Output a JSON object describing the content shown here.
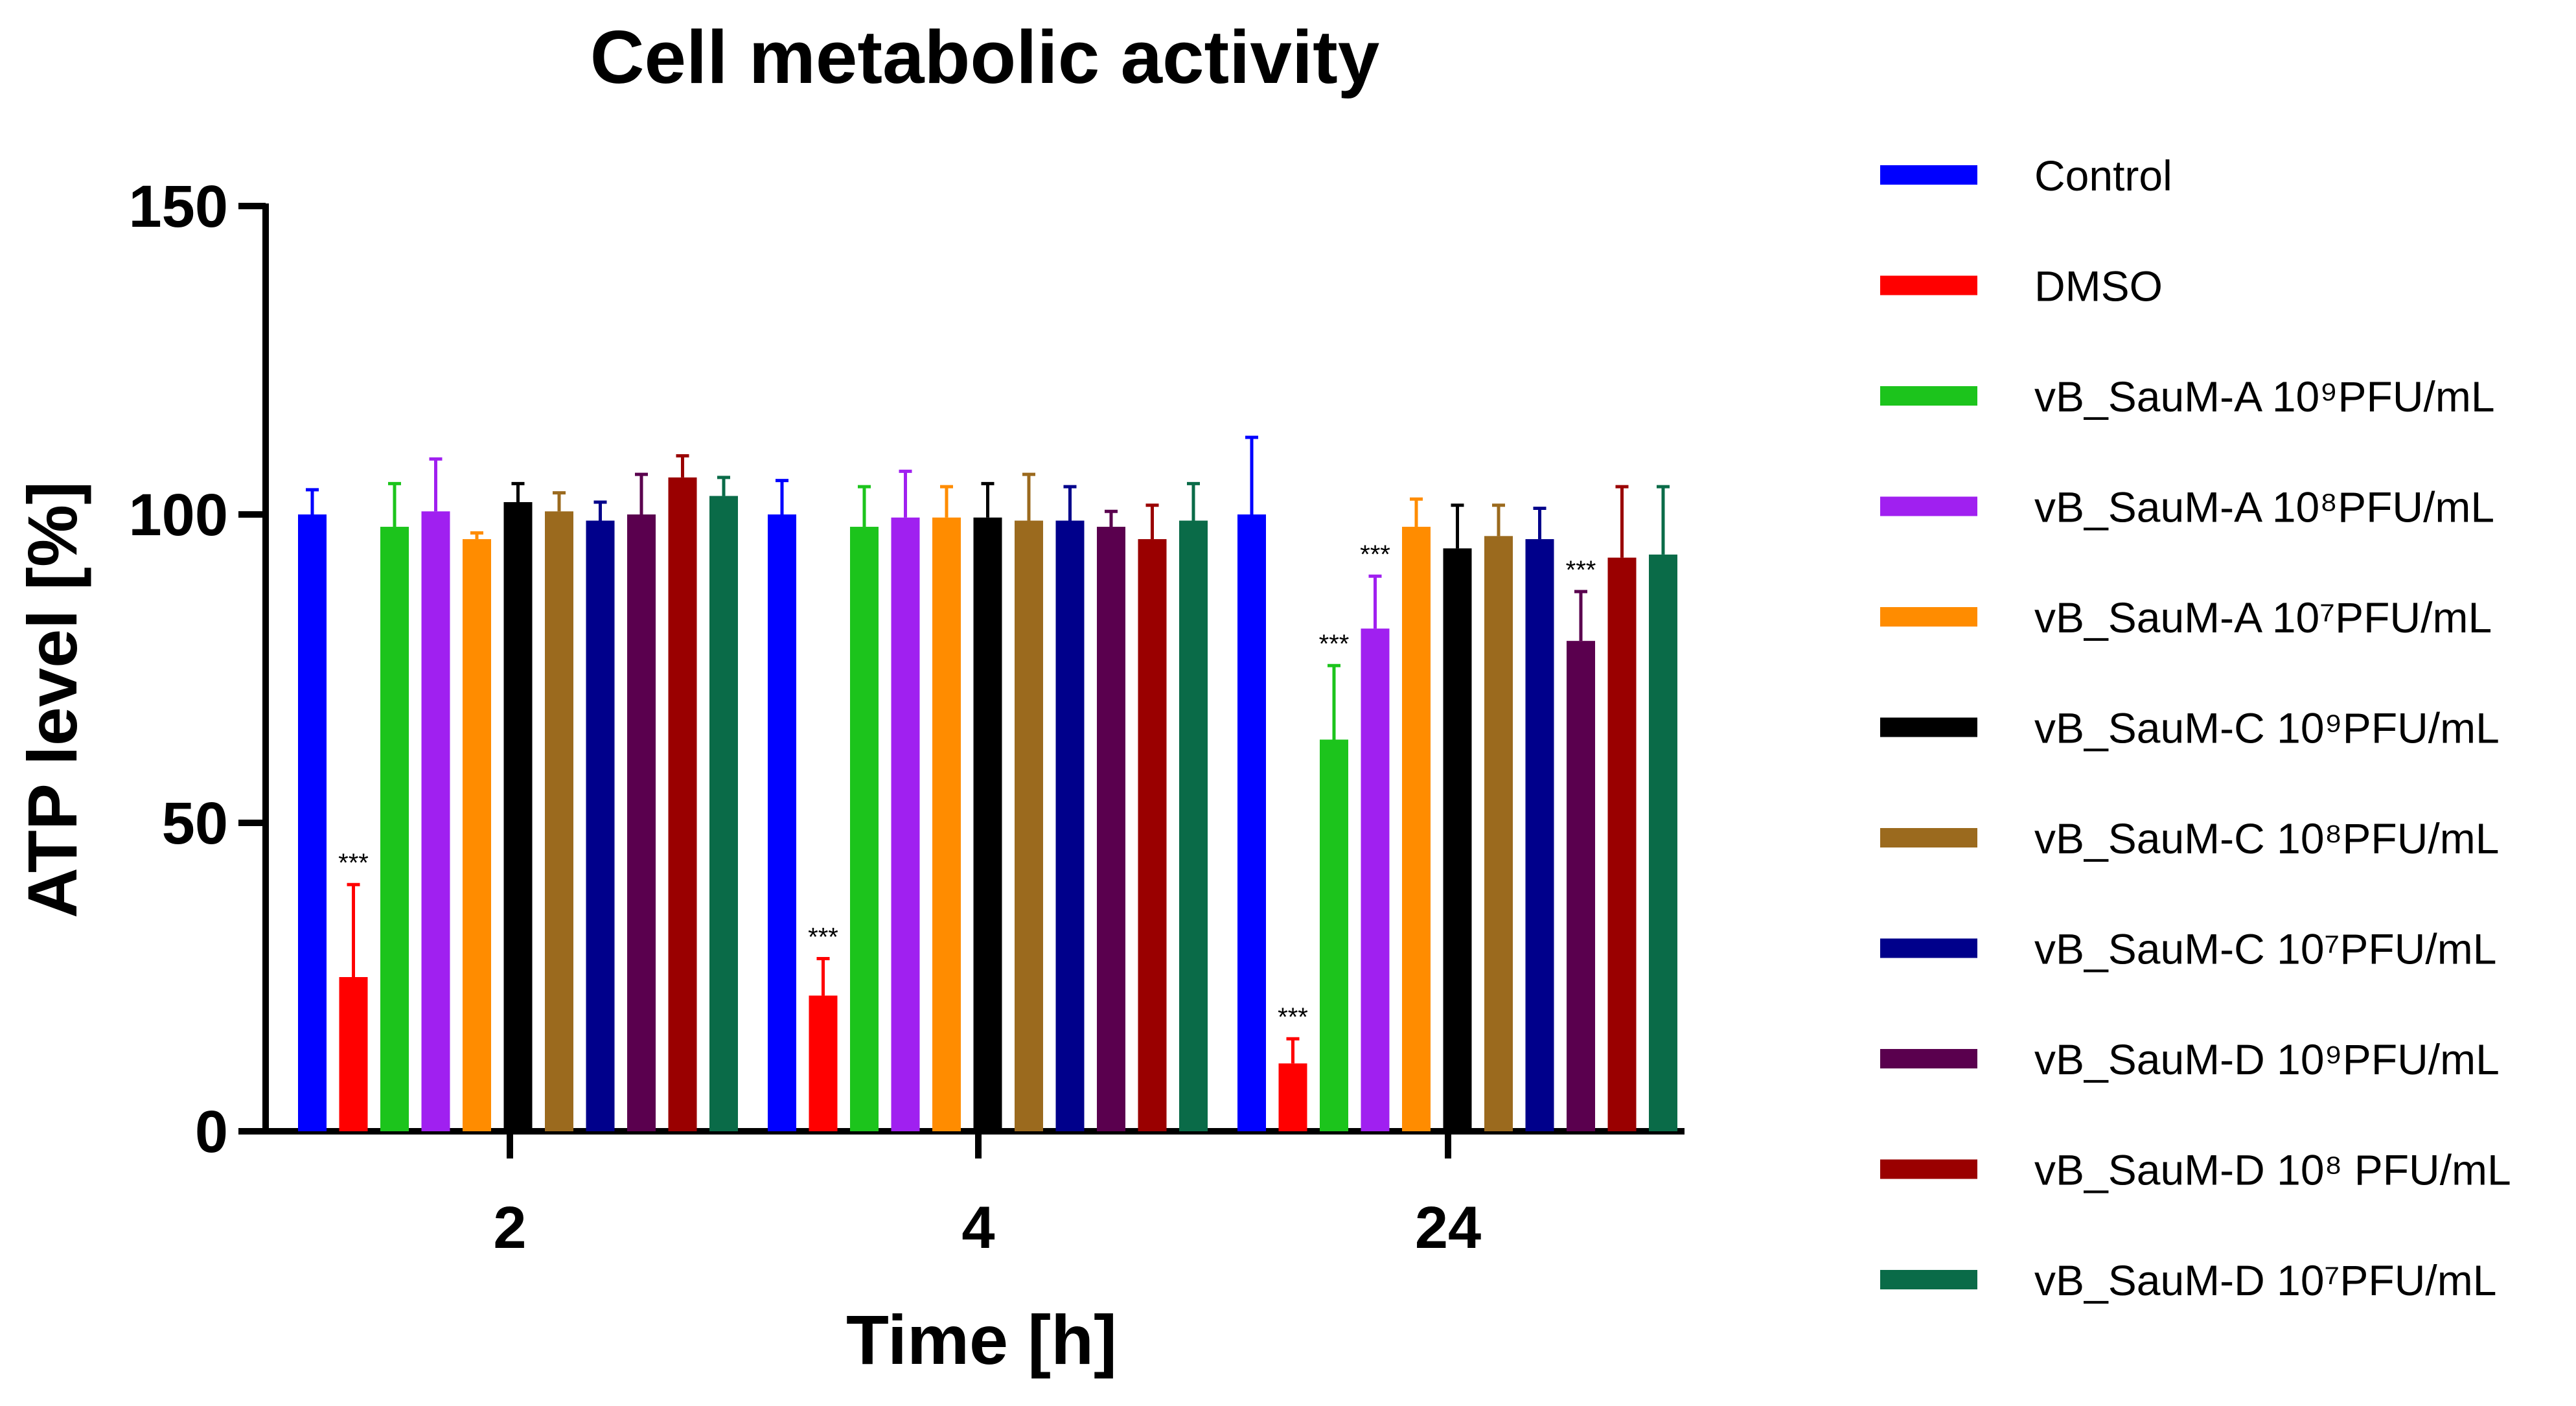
{
  "chart_data": {
    "type": "bar",
    "title": "Cell metabolic activity",
    "xlabel": "Time [h]",
    "ylabel": "ATP level [%]",
    "ylim": [
      0,
      150
    ],
    "yticks": [
      "0",
      "50",
      "100",
      "150"
    ],
    "categories": [
      "2",
      "4",
      "24"
    ],
    "significance_label": "***",
    "series": [
      {
        "name": "Control",
        "color": "#0000FF",
        "values": [
          100,
          100,
          100
        ],
        "errors": [
          4,
          5.5,
          12.5
        ],
        "significant": [
          false,
          false,
          false
        ]
      },
      {
        "name": "DMSO",
        "color": "#FF0000",
        "values": [
          25,
          22,
          11
        ],
        "errors": [
          15,
          6,
          4
        ],
        "significant": [
          true,
          true,
          true
        ]
      },
      {
        "name": "vB_SauM-A 10⁹PFU/mL",
        "color": "#1CC41C",
        "values": [
          98,
          98,
          63.5
        ],
        "errors": [
          7,
          6.5,
          12
        ],
        "significant": [
          false,
          false,
          true
        ]
      },
      {
        "name": "vB_SauM-A 10⁸PFU/mL",
        "color": "#A020F0",
        "values": [
          100.5,
          99.5,
          81.5
        ],
        "errors": [
          8.5,
          7.5,
          8.5
        ],
        "significant": [
          false,
          false,
          true
        ]
      },
      {
        "name": "vB_SauM-A 10⁷PFU/mL",
        "color": "#FF8C00",
        "values": [
          96,
          99.5,
          98
        ],
        "errors": [
          1,
          5,
          4.5
        ],
        "significant": [
          false,
          false,
          false
        ]
      },
      {
        "name": "vB_SauM-C 10⁹PFU/mL",
        "color": "#000000",
        "values": [
          102,
          99.5,
          94.5
        ],
        "errors": [
          3,
          5.5,
          7
        ],
        "significant": [
          false,
          false,
          false
        ]
      },
      {
        "name": "vB_SauM-C 10⁸PFU/mL",
        "color": "#9B6A1E",
        "values": [
          100.5,
          99,
          96.5
        ],
        "errors": [
          3,
          7.5,
          5
        ],
        "significant": [
          false,
          false,
          false
        ]
      },
      {
        "name": "vB_SauM-C 10⁷PFU/mL",
        "color": "#00008B",
        "values": [
          99,
          99,
          96
        ],
        "errors": [
          3,
          5.5,
          5
        ],
        "significant": [
          false,
          false,
          false
        ]
      },
      {
        "name": "vB_SauM-D 10⁹PFU/mL",
        "color": "#5A004E",
        "values": [
          100,
          98,
          79.5
        ],
        "errors": [
          6.5,
          2.5,
          8
        ],
        "significant": [
          false,
          false,
          true
        ]
      },
      {
        "name": "vB_SauM-D 10⁸ PFU/mL",
        "color": "#9A0000",
        "values": [
          106,
          96,
          93
        ],
        "errors": [
          3.5,
          5.5,
          11.5
        ],
        "significant": [
          false,
          false,
          false
        ]
      },
      {
        "name": "vB_SauM-D 10⁷PFU/mL",
        "color": "#0A6B48",
        "values": [
          103,
          99,
          93.5
        ],
        "errors": [
          3,
          6,
          11
        ],
        "significant": [
          false,
          false,
          false
        ]
      }
    ],
    "grid": false,
    "legend_position": "right"
  }
}
